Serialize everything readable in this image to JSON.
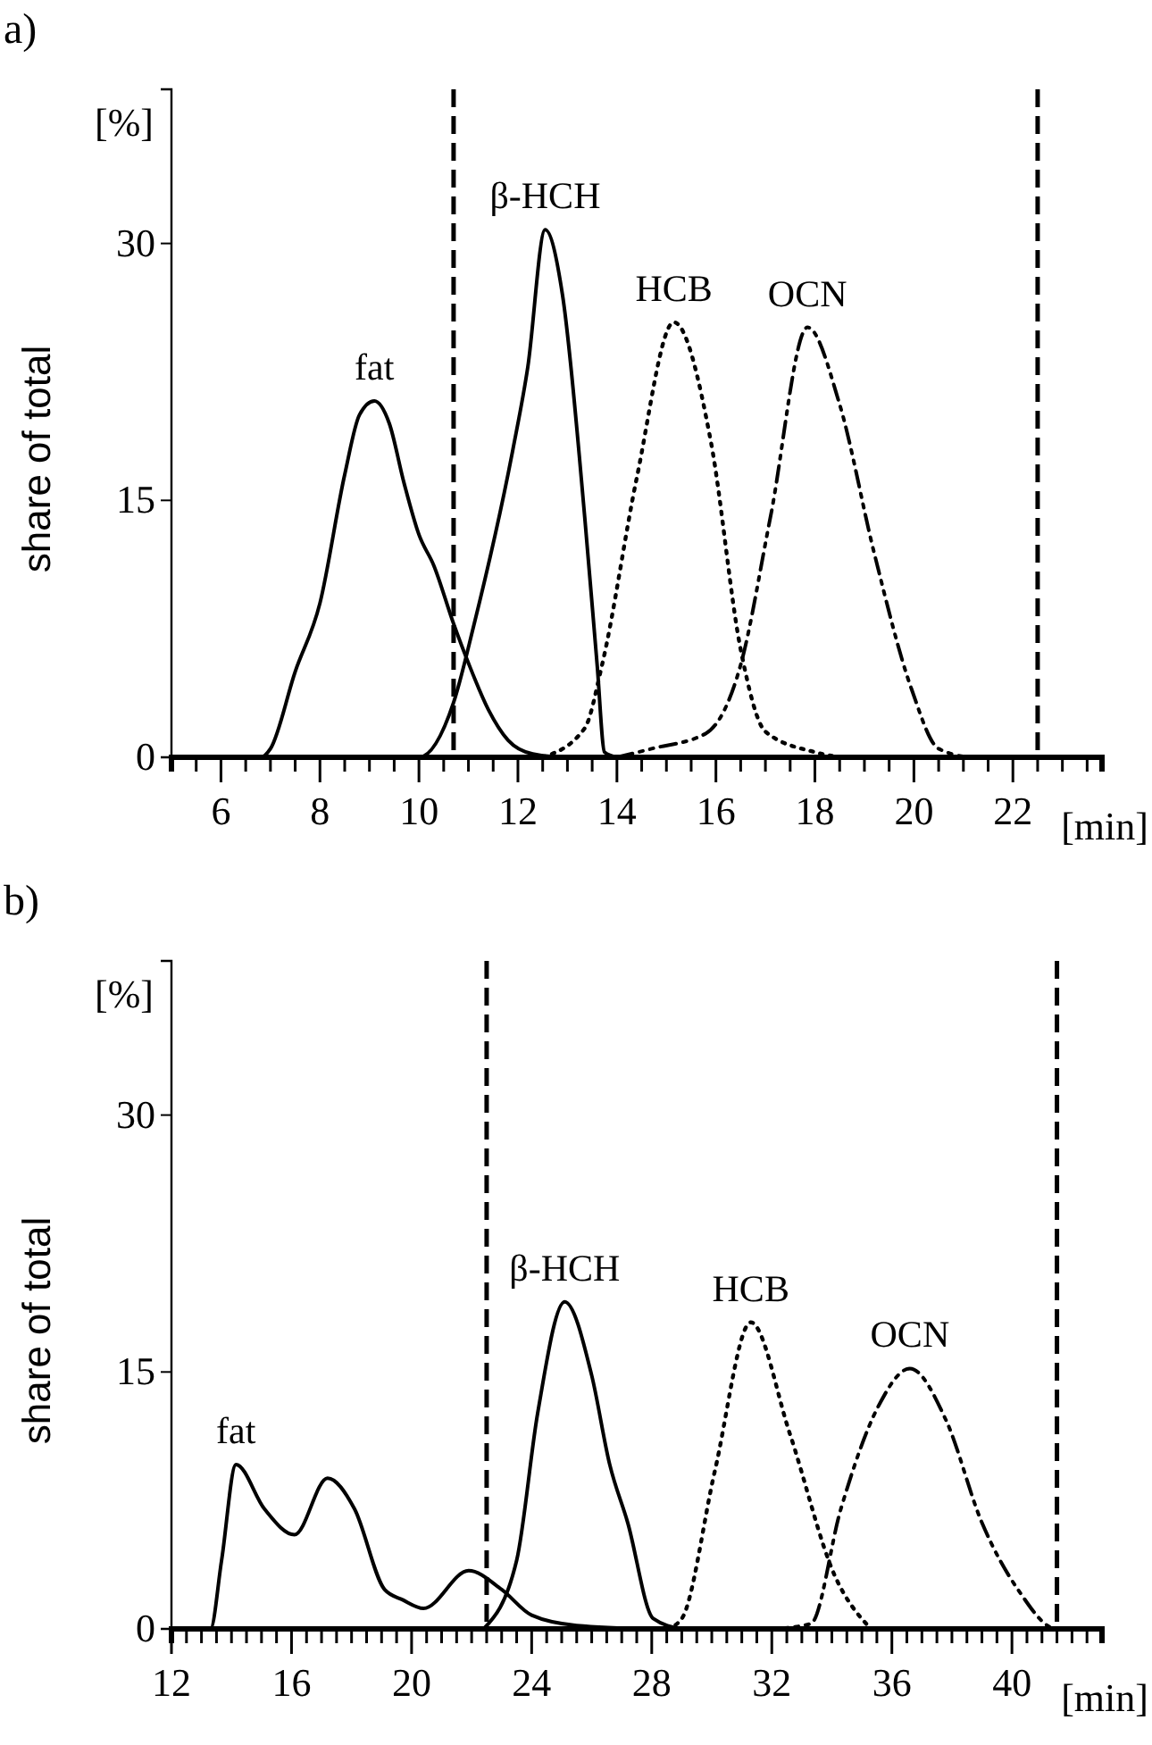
{
  "chart_data": [
    {
      "type": "line",
      "title": "a)",
      "xlabel": "[min]",
      "ylabel": "share of total",
      "annotations": [
        "[%]"
      ],
      "xlim": [
        5,
        23.8
      ],
      "ylim": [
        0,
        39
      ],
      "xticks": [
        {
          "value": 5,
          "label": null
        },
        {
          "value": 5.5,
          "label": null
        },
        6,
        {
          "value": 6.5,
          "label": null
        },
        {
          "value": 7,
          "label": null
        },
        {
          "value": 7.5,
          "label": null
        },
        8,
        {
          "value": 8.5,
          "label": null
        },
        {
          "value": 9,
          "label": null
        },
        {
          "value": 9.5,
          "label": null
        },
        10,
        {
          "value": 10.5,
          "label": null
        },
        {
          "value": 11,
          "label": null
        },
        {
          "value": 11.5,
          "label": null
        },
        12,
        {
          "value": 12.5,
          "label": null
        },
        {
          "value": 13,
          "label": null
        },
        {
          "value": 13.5,
          "label": null
        },
        14,
        {
          "value": 14.5,
          "label": null
        },
        {
          "value": 15,
          "label": null
        },
        {
          "value": 15.5,
          "label": null
        },
        16,
        {
          "value": 16.5,
          "label": null
        },
        {
          "value": 17,
          "label": null
        },
        {
          "value": 17.5,
          "label": null
        },
        18,
        {
          "value": 18.5,
          "label": null
        },
        {
          "value": 19,
          "label": null
        },
        {
          "value": 19.5,
          "label": null
        },
        20,
        {
          "value": 20.5,
          "label": null
        },
        {
          "value": 21,
          "label": null
        },
        {
          "value": 21.5,
          "label": null
        },
        22,
        {
          "value": 22.5,
          "label": null
        },
        {
          "value": 23,
          "label": null
        },
        {
          "value": 23.5,
          "label": null
        }
      ],
      "yticks": [
        0,
        15,
        30
      ],
      "ref_lines": [
        {
          "axis": "x",
          "value": 10.7,
          "line_style": "dashed"
        },
        {
          "axis": "x",
          "value": 22.5,
          "line_style": "dashed"
        }
      ],
      "series": [
        {
          "name": "fat",
          "color": "#000000",
          "line_style": "solid",
          "x": [
            6,
            6.8,
            7,
            7.5,
            8,
            8.5,
            8.8,
            9.1,
            9.4,
            9.7,
            10,
            10.3,
            10.7,
            11,
            11.4,
            11.8,
            12.3,
            13,
            14
          ],
          "values": [
            0,
            0,
            0.5,
            5,
            9,
            16.5,
            20,
            20.8,
            19.5,
            16,
            13,
            11.2,
            7.8,
            5.5,
            2.8,
            1,
            0.2,
            0,
            0
          ]
        },
        {
          "name": "β-HCH",
          "color": "#000000",
          "line_style": "solid",
          "x": [
            6,
            10,
            10.7,
            11.1,
            11.9,
            12.2,
            12.55,
            12.9,
            13.35,
            13.6,
            13.75,
            14
          ],
          "values": [
            0,
            0,
            3.2,
            7.6,
            18,
            22.8,
            30.8,
            27,
            14,
            5.4,
            0.3,
            0
          ]
        },
        {
          "name": "HCB",
          "color": "#000000",
          "line_style": "dotted",
          "x": [
            12.5,
            13.35,
            13.7,
            14.4,
            15.15,
            15.9,
            16.5,
            17,
            18,
            18.5
          ],
          "values": [
            0,
            1.7,
            5.4,
            16.3,
            25.4,
            18.4,
            6.3,
            1.5,
            0.3,
            0
          ]
        },
        {
          "name": "OCN",
          "color": "#000000",
          "line_style": "dashed",
          "x": [
            14,
            14.7,
            15.8,
            16.5,
            17.1,
            17.85,
            18.5,
            19.2,
            19.95,
            20.5,
            21.2,
            23.8
          ],
          "values": [
            0,
            0.5,
            1.4,
            5.4,
            14,
            25.1,
            20.6,
            11.9,
            4,
            0.5,
            0,
            0
          ]
        }
      ]
    },
    {
      "type": "line",
      "title": "b)",
      "xlabel": "[min]",
      "ylabel": "share of total",
      "annotations": [
        "[%]"
      ],
      "xlim": [
        12,
        43
      ],
      "ylim": [
        0,
        39
      ],
      "xticks": [
        12,
        {
          "value": 12.5,
          "label": null
        },
        {
          "value": 13,
          "label": null
        },
        {
          "value": 13.5,
          "label": null
        },
        {
          "value": 14,
          "label": null
        },
        {
          "value": 14.5,
          "label": null
        },
        {
          "value": 15,
          "label": null
        },
        {
          "value": 15.5,
          "label": null
        },
        16,
        {
          "value": 16.5,
          "label": null
        },
        {
          "value": 17,
          "label": null
        },
        {
          "value": 17.5,
          "label": null
        },
        {
          "value": 18,
          "label": null
        },
        {
          "value": 18.5,
          "label": null
        },
        {
          "value": 19,
          "label": null
        },
        {
          "value": 19.5,
          "label": null
        },
        20,
        {
          "value": 20.5,
          "label": null
        },
        {
          "value": 21,
          "label": null
        },
        {
          "value": 21.5,
          "label": null
        },
        {
          "value": 22,
          "label": null
        },
        {
          "value": 22.5,
          "label": null
        },
        {
          "value": 23,
          "label": null
        },
        {
          "value": 23.5,
          "label": null
        },
        24,
        {
          "value": 24.5,
          "label": null
        },
        {
          "value": 25,
          "label": null
        },
        {
          "value": 25.5,
          "label": null
        },
        {
          "value": 26,
          "label": null
        },
        {
          "value": 26.5,
          "label": null
        },
        {
          "value": 27,
          "label": null
        },
        {
          "value": 27.5,
          "label": null
        },
        28,
        {
          "value": 28.5,
          "label": null
        },
        {
          "value": 29,
          "label": null
        },
        {
          "value": 29.5,
          "label": null
        },
        {
          "value": 30,
          "label": null
        },
        {
          "value": 30.5,
          "label": null
        },
        {
          "value": 31,
          "label": null
        },
        {
          "value": 31.5,
          "label": null
        },
        32,
        {
          "value": 32.5,
          "label": null
        },
        {
          "value": 33,
          "label": null
        },
        {
          "value": 33.5,
          "label": null
        },
        {
          "value": 34,
          "label": null
        },
        {
          "value": 34.5,
          "label": null
        },
        {
          "value": 35,
          "label": null
        },
        {
          "value": 35.5,
          "label": null
        },
        36,
        {
          "value": 36.5,
          "label": null
        },
        {
          "value": 37,
          "label": null
        },
        {
          "value": 37.5,
          "label": null
        },
        {
          "value": 38,
          "label": null
        },
        {
          "value": 38.5,
          "label": null
        },
        {
          "value": 39,
          "label": null
        },
        {
          "value": 39.5,
          "label": null
        },
        40,
        {
          "value": 40.5,
          "label": null
        },
        {
          "value": 41,
          "label": null
        },
        {
          "value": 41.5,
          "label": null
        },
        {
          "value": 42,
          "label": null
        },
        {
          "value": 42.5,
          "label": null
        }
      ],
      "yticks": [
        0,
        15,
        30
      ],
      "ref_lines": [
        {
          "axis": "x",
          "value": 22.5,
          "line_style": "dashed"
        },
        {
          "axis": "x",
          "value": 41.5,
          "line_style": "dashed"
        }
      ],
      "series": [
        {
          "name": "fat",
          "color": "#000000",
          "line_style": "solid",
          "x": [
            12,
            13.3,
            13.67,
            14.15,
            15.1,
            16.1,
            17.2,
            18.1,
            19.1,
            19.7,
            20.4,
            21.9,
            23,
            24,
            25.5,
            28
          ],
          "values": [
            0,
            0,
            4,
            9.6,
            7,
            5.5,
            8.8,
            7,
            2.3,
            1.7,
            1.2,
            3.4,
            2.3,
            0.8,
            0.2,
            0
          ]
        },
        {
          "name": "β-HCH",
          "color": "#000000",
          "line_style": "solid",
          "x": [
            22.4,
            23.5,
            24.2,
            25.1,
            26,
            26.6,
            27.2,
            28.05,
            29
          ],
          "values": [
            0,
            4,
            12.6,
            19.1,
            14.8,
            9.6,
            6.2,
            0.6,
            0
          ]
        },
        {
          "name": "HCB",
          "color": "#000000",
          "line_style": "dotted",
          "x": [
            28.5,
            29,
            30.1,
            31.3,
            32.6,
            34.1,
            35.3
          ],
          "values": [
            0,
            0.6,
            9.2,
            17.9,
            11.4,
            3.1,
            0
          ]
        },
        {
          "name": "OCN",
          "color": "#000000",
          "line_style": "dashed",
          "x": [
            32,
            33.3,
            34.3,
            35.55,
            36.6,
            37.8,
            39,
            40.2,
            41.5,
            43
          ],
          "values": [
            0,
            0.3,
            7,
            13,
            15.2,
            12.2,
            6.2,
            2.3,
            0,
            0
          ]
        }
      ]
    }
  ]
}
